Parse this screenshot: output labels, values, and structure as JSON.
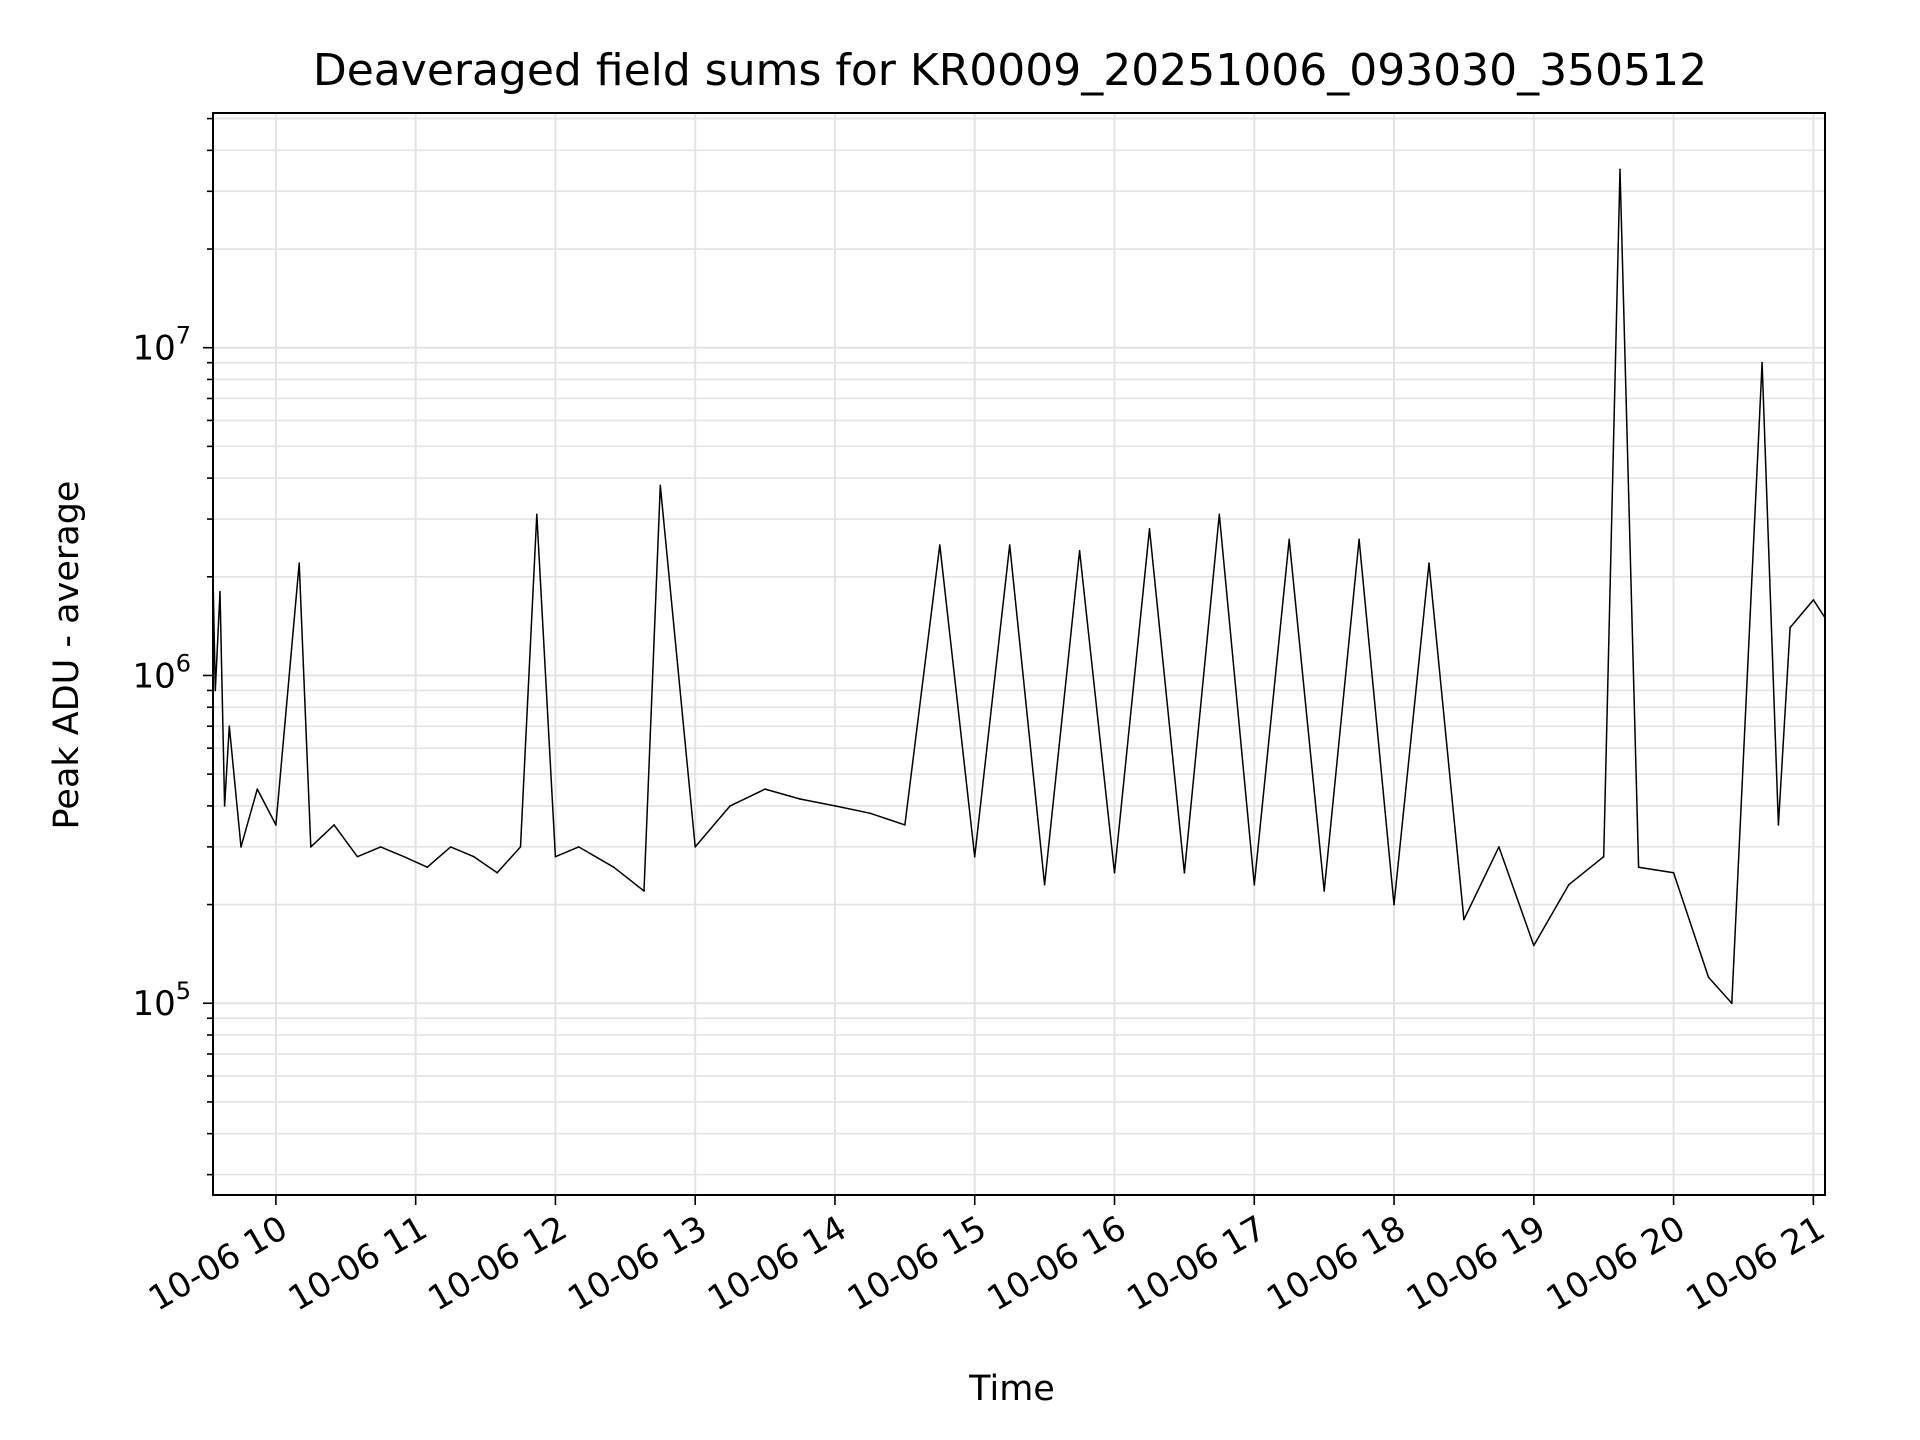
{
  "chart_data": {
    "type": "line",
    "title": "Deaveraged field sums for KR0009_20251006_093030_350512",
    "xlabel": "Time",
    "ylabel": "Peak ADU - average",
    "y_scale": "log",
    "ylim": [
      26000,
      52000000
    ],
    "xlim": [
      "10-06 09:33",
      "10-06 21:05"
    ],
    "grid": true,
    "grid_minor": true,
    "line_color": "#000000",
    "x_ticks": [
      "10-06 10",
      "10-06 11",
      "10-06 12",
      "10-06 13",
      "10-06 14",
      "10-06 15",
      "10-06 16",
      "10-06 17",
      "10-06 18",
      "10-06 19",
      "10-06 20",
      "10-06 21"
    ],
    "y_ticks": [
      {
        "base": "10",
        "exp": "5",
        "value": 100000
      },
      {
        "base": "10",
        "exp": "6",
        "value": 1000000
      },
      {
        "base": "10",
        "exp": "7",
        "value": 10000000
      }
    ],
    "series": [
      {
        "x": [
          "10-06 09:33",
          "10-06 09:34",
          "10-06 09:36",
          "10-06 09:38",
          "10-06 09:40",
          "10-06 09:45",
          "10-06 09:52",
          "10-06 10:00",
          "10-06 10:10",
          "10-06 10:15",
          "10-06 10:25",
          "10-06 10:35",
          "10-06 10:45",
          "10-06 10:55",
          "10-06 11:05",
          "10-06 11:15",
          "10-06 11:25",
          "10-06 11:35",
          "10-06 11:45",
          "10-06 11:52",
          "10-06 12:00",
          "10-06 12:10",
          "10-06 12:25",
          "10-06 12:38",
          "10-06 12:45",
          "10-06 13:00",
          "10-06 13:15",
          "10-06 13:30",
          "10-06 13:45",
          "10-06 14:00",
          "10-06 14:15",
          "10-06 14:30",
          "10-06 14:45",
          "10-06 15:00",
          "10-06 15:15",
          "10-06 15:30",
          "10-06 15:45",
          "10-06 16:00",
          "10-06 16:15",
          "10-06 16:30",
          "10-06 16:45",
          "10-06 17:00",
          "10-06 17:15",
          "10-06 17:30",
          "10-06 17:45",
          "10-06 18:00",
          "10-06 18:15",
          "10-06 18:30",
          "10-06 18:45",
          "10-06 19:00",
          "10-06 19:15",
          "10-06 19:30",
          "10-06 19:37",
          "10-06 19:45",
          "10-06 20:00",
          "10-06 20:15",
          "10-06 20:25",
          "10-06 20:38",
          "10-06 20:45",
          "10-06 20:50",
          "10-06 21:00",
          "10-06 21:05"
        ],
        "y": [
          2000000,
          900000,
          1800000,
          400000,
          700000,
          300000,
          450000,
          350000,
          2200000,
          300000,
          350000,
          280000,
          300000,
          280000,
          260000,
          300000,
          280000,
          250000,
          300000,
          3100000,
          280000,
          300000,
          260000,
          220000,
          3800000,
          300000,
          400000,
          450000,
          420000,
          400000,
          380000,
          350000,
          2500000,
          280000,
          2500000,
          230000,
          2400000,
          250000,
          2800000,
          250000,
          3100000,
          230000,
          2600000,
          220000,
          2600000,
          200000,
          2200000,
          180000,
          300000,
          150000,
          230000,
          280000,
          35000000,
          260000,
          250000,
          120000,
          100000,
          9000000,
          350000,
          1400000,
          1700000,
          1500000
        ]
      }
    ]
  }
}
